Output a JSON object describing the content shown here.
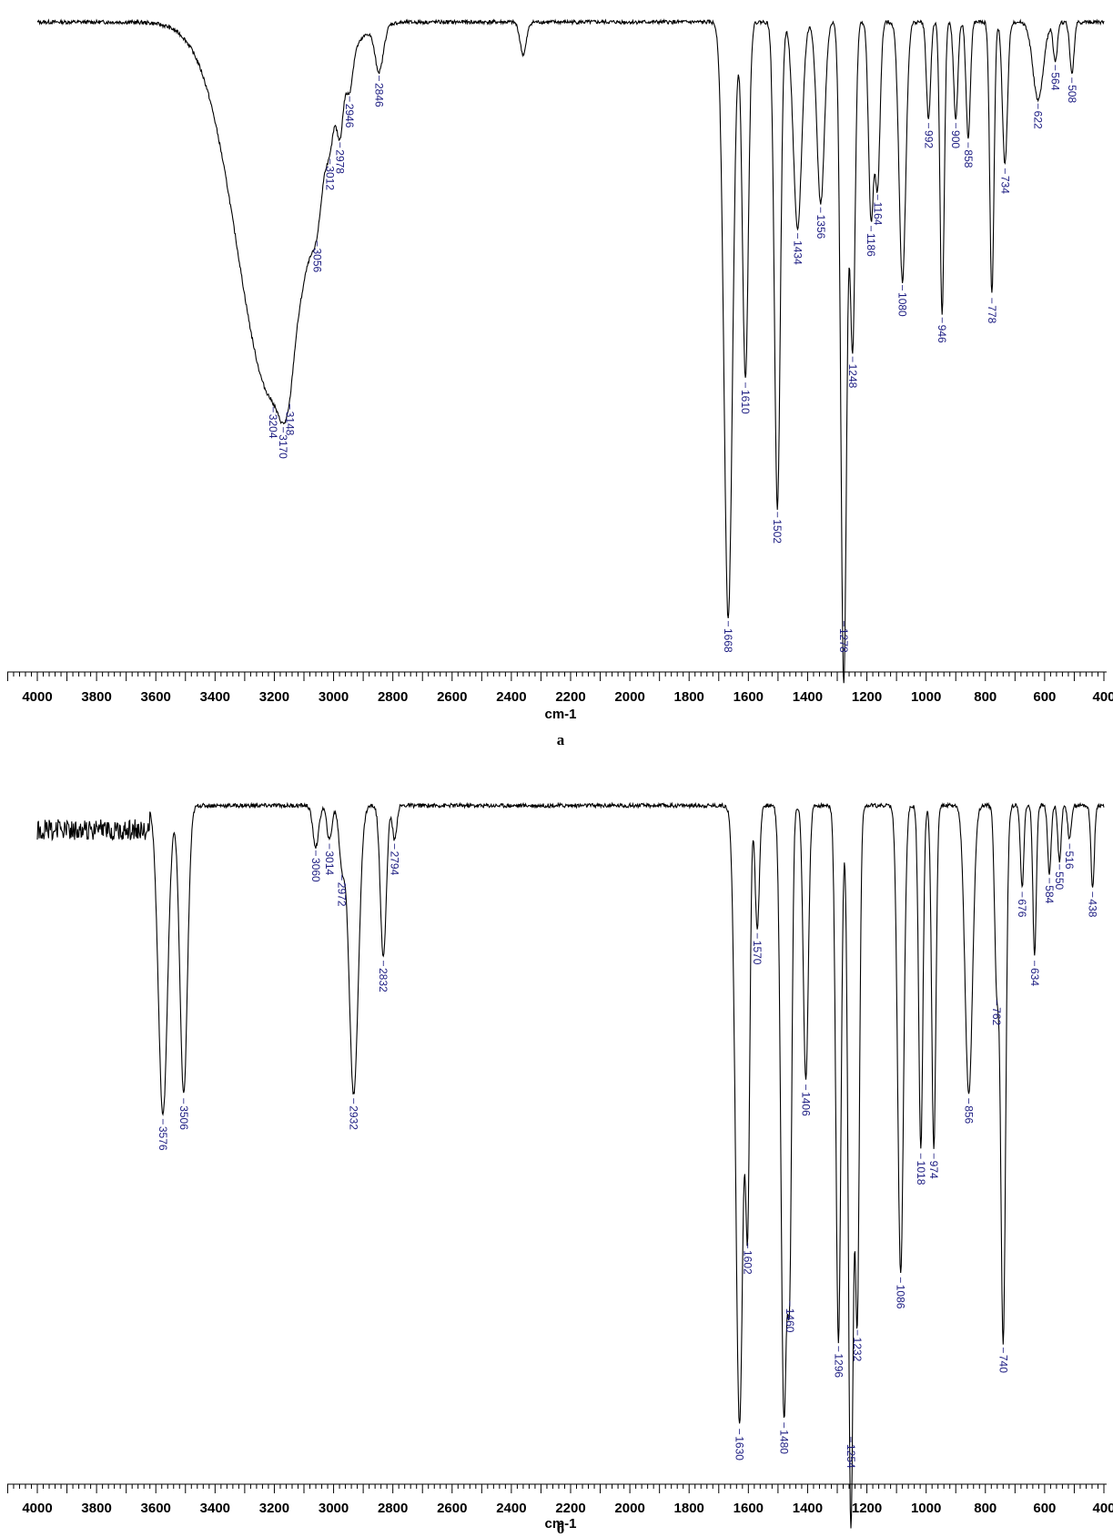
{
  "chart_data": [
    {
      "type": "line",
      "panel_label": "а",
      "xlabel": "cm-1",
      "xlim": [
        4000,
        400
      ],
      "x_ticks": [
        4000,
        3800,
        3600,
        3400,
        3200,
        3000,
        2800,
        2600,
        2400,
        2200,
        2000,
        1800,
        1600,
        1400,
        1200,
        1000,
        800,
        600,
        400
      ],
      "tick_labels": [
        "4000",
        "3800",
        "3600",
        "3400",
        "3200",
        "3000",
        "2800",
        "2600",
        "2400",
        "2200",
        "2000",
        "1800",
        "1600",
        "1400",
        "1200",
        "1000",
        "800",
        "600",
        "400"
      ],
      "baseline": 0.98,
      "series": [
        {
          "peaks": [
            {
              "x": 3204,
              "depth": 0.58,
              "width": 170,
              "label": "3204"
            },
            {
              "x": 3170,
              "depth": 0.05,
              "width": 25,
              "label": "3170"
            },
            {
              "x": 3148,
              "depth": 0.04,
              "width": 20,
              "label": "3148"
            },
            {
              "x": 3056,
              "depth": 0.06,
              "width": 25,
              "label": "3056"
            },
            {
              "x": 3012,
              "depth": 0.04,
              "width": 15,
              "label": "3012"
            },
            {
              "x": 2978,
              "depth": 0.08,
              "width": 15,
              "label": "2978"
            },
            {
              "x": 2946,
              "depth": 0.05,
              "width": 15,
              "label": "2946"
            },
            {
              "x": 2846,
              "depth": 0.07,
              "width": 20,
              "label": "2846"
            },
            {
              "x": 2360,
              "depth": 0.05,
              "width": 15,
              "label": ""
            },
            {
              "x": 1668,
              "depth": 0.92,
              "width": 20,
              "label": "1668"
            },
            {
              "x": 1610,
              "depth": 0.55,
              "width": 14,
              "label": "1610"
            },
            {
              "x": 1502,
              "depth": 0.75,
              "width": 14,
              "label": "1502"
            },
            {
              "x": 1434,
              "depth": 0.32,
              "width": 20,
              "label": "1434"
            },
            {
              "x": 1356,
              "depth": 0.28,
              "width": 18,
              "label": "1356"
            },
            {
              "x": 1278,
              "depth": 1.02,
              "width": 14,
              "label": "1278"
            },
            {
              "x": 1248,
              "depth": 0.5,
              "width": 12,
              "label": "1248"
            },
            {
              "x": 1186,
              "depth": 0.3,
              "width": 12,
              "label": "1186"
            },
            {
              "x": 1164,
              "depth": 0.25,
              "width": 12,
              "label": "1164"
            },
            {
              "x": 1080,
              "depth": 0.4,
              "width": 16,
              "label": "1080"
            },
            {
              "x": 992,
              "depth": 0.15,
              "width": 10,
              "label": "992"
            },
            {
              "x": 946,
              "depth": 0.45,
              "width": 10,
              "label": "946"
            },
            {
              "x": 900,
              "depth": 0.15,
              "width": 10,
              "label": "900"
            },
            {
              "x": 858,
              "depth": 0.18,
              "width": 10,
              "label": "858"
            },
            {
              "x": 778,
              "depth": 0.42,
              "width": 10,
              "label": "778"
            },
            {
              "x": 734,
              "depth": 0.22,
              "width": 12,
              "label": "734"
            },
            {
              "x": 622,
              "depth": 0.12,
              "width": 25,
              "label": "622"
            },
            {
              "x": 564,
              "depth": 0.06,
              "width": 10,
              "label": "564"
            },
            {
              "x": 508,
              "depth": 0.08,
              "width": 10,
              "label": "508"
            }
          ]
        }
      ]
    },
    {
      "type": "line",
      "panel_label": "б",
      "xlabel": "cm-1",
      "xlim": [
        4000,
        400
      ],
      "x_ticks": [
        4000,
        3800,
        3600,
        3400,
        3200,
        3000,
        2800,
        2600,
        2400,
        2200,
        2000,
        1800,
        1600,
        1400,
        1200,
        1000,
        800,
        600,
        400
      ],
      "tick_labels": [
        "4000",
        "3800",
        "3600",
        "3400",
        "3200",
        "3000",
        "2800",
        "2600",
        "2400",
        "2200",
        "2000",
        "1800",
        "1600",
        "1400",
        "1200",
        "1000",
        "800",
        "600",
        "400"
      ],
      "baseline": 0.97,
      "series": [
        {
          "peaks": [
            {
              "x": 3576,
              "depth": 0.45,
              "width": 22,
              "label": "3576"
            },
            {
              "x": 3506,
              "depth": 0.42,
              "width": 18,
              "label": "3506"
            },
            {
              "x": 3060,
              "depth": 0.06,
              "width": 14,
              "label": "3060"
            },
            {
              "x": 3014,
              "depth": 0.05,
              "width": 12,
              "label": "3014"
            },
            {
              "x": 2972,
              "depth": 0.08,
              "width": 14,
              "label": "2972"
            },
            {
              "x": 2932,
              "depth": 0.42,
              "width": 22,
              "label": "2932"
            },
            {
              "x": 2832,
              "depth": 0.22,
              "width": 14,
              "label": "2832"
            },
            {
              "x": 2794,
              "depth": 0.05,
              "width": 10,
              "label": "2794"
            },
            {
              "x": 1630,
              "depth": 0.9,
              "width": 18,
              "label": "1630"
            },
            {
              "x": 1602,
              "depth": 0.55,
              "width": 10,
              "label": "1602"
            },
            {
              "x": 1570,
              "depth": 0.18,
              "width": 10,
              "label": "1570"
            },
            {
              "x": 1480,
              "depth": 0.88,
              "width": 14,
              "label": "1480"
            },
            {
              "x": 1460,
              "depth": 0.6,
              "width": 10,
              "label": "1460"
            },
            {
              "x": 1406,
              "depth": 0.4,
              "width": 12,
              "label": "1406"
            },
            {
              "x": 1296,
              "depth": 0.78,
              "width": 12,
              "label": "1296"
            },
            {
              "x": 1254,
              "depth": 1.05,
              "width": 12,
              "label": "1254"
            },
            {
              "x": 1232,
              "depth": 0.72,
              "width": 10,
              "label": "1232"
            },
            {
              "x": 1086,
              "depth": 0.68,
              "width": 14,
              "label": "1086"
            },
            {
              "x": 1018,
              "depth": 0.5,
              "width": 10,
              "label": "1018"
            },
            {
              "x": 974,
              "depth": 0.5,
              "width": 10,
              "label": "974"
            },
            {
              "x": 856,
              "depth": 0.42,
              "width": 18,
              "label": "856"
            },
            {
              "x": 762,
              "depth": 0.25,
              "width": 10,
              "label": "762"
            },
            {
              "x": 740,
              "depth": 0.78,
              "width": 12,
              "label": "740"
            },
            {
              "x": 676,
              "depth": 0.12,
              "width": 8,
              "label": "676"
            },
            {
              "x": 634,
              "depth": 0.22,
              "width": 8,
              "label": "634"
            },
            {
              "x": 584,
              "depth": 0.1,
              "width": 8,
              "label": "584"
            },
            {
              "x": 550,
              "depth": 0.08,
              "width": 8,
              "label": "550"
            },
            {
              "x": 516,
              "depth": 0.05,
              "width": 8,
              "label": "516"
            },
            {
              "x": 438,
              "depth": 0.12,
              "width": 8,
              "label": "438"
            }
          ]
        }
      ]
    }
  ]
}
